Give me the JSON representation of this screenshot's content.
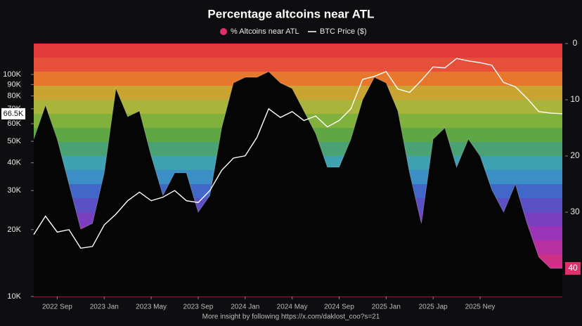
{
  "chart_data": {
    "type": "line",
    "title": "Percentage altcoins near ATL",
    "footer": "More insight by following https://x.com/daklost_coo?s=21",
    "x": [
      "2022-07",
      "2022-08",
      "2022-09",
      "2022-10",
      "2022-11",
      "2022-12",
      "2023-01",
      "2023-02",
      "2023-03",
      "2023-04",
      "2023-05",
      "2023-06",
      "2023-07",
      "2023-08",
      "2023-09",
      "2023-10",
      "2023-11",
      "2023-12",
      "2024-01",
      "2024-02",
      "2024-03",
      "2024-04",
      "2024-05",
      "2024-06",
      "2024-07",
      "2024-08",
      "2024-09",
      "2024-10",
      "2024-11",
      "2024-12",
      "2025-01",
      "2025-02",
      "2025-03",
      "2025-04",
      "2025-05",
      "2025-06",
      "2025-07",
      "2025-08",
      "2025-09",
      "2025-10",
      "2025-11",
      "2025-12",
      "2026-01",
      "2026-02",
      "2026-03",
      "2026-04"
    ],
    "xlim": [
      "2022-07",
      "2026-04"
    ],
    "xticks": [
      {
        "value": "2022-09",
        "label": "2022 Sep"
      },
      {
        "value": "2023-01",
        "label": "2023 Jan"
      },
      {
        "value": "2023-05",
        "label": "2023 May"
      },
      {
        "value": "2023-09",
        "label": "2023 Sep"
      },
      {
        "value": "2024-01",
        "label": "2024 Jan"
      },
      {
        "value": "2024-05",
        "label": "2024 May"
      },
      {
        "value": "2024-09",
        "label": "2024 Sep"
      },
      {
        "value": "2025-01",
        "label": "2025 Jan"
      },
      {
        "value": "2025-05",
        "label": "2025 Jap"
      },
      {
        "value": "2025-09",
        "label": "2025 Ney"
      }
    ],
    "series": [
      {
        "name": "% Altcoins near ATL",
        "color": "#e0306b",
        "axis": "y2",
        "values": [
          17,
          11,
          17,
          25,
          33,
          32,
          23,
          8,
          13,
          12,
          20,
          27,
          23,
          23,
          30,
          27,
          15,
          7,
          6,
          6,
          5,
          7,
          8,
          12,
          16,
          22,
          22,
          17,
          10,
          6,
          7,
          12,
          23,
          32,
          17,
          15,
          22,
          17,
          20,
          26,
          30,
          25,
          32,
          38,
          40,
          40
        ]
      },
      {
        "name": "BTC Price ($)",
        "color": "#ffffff",
        "axis": "y",
        "values": [
          19000,
          23000,
          19500,
          20000,
          16500,
          16800,
          21000,
          23500,
          27000,
          29500,
          27000,
          28000,
          30000,
          27000,
          26500,
          30000,
          37000,
          42000,
          43000,
          52000,
          70000,
          64000,
          68000,
          62000,
          65000,
          58000,
          62000,
          70000,
          95000,
          98000,
          103000,
          86000,
          83000,
          94000,
          108000,
          107000,
          118000,
          115000,
          113000,
          110000,
          92000,
          88000,
          78000,
          68000,
          67000,
          66500
        ],
        "value_labels": [
          null,
          null,
          null,
          null,
          null,
          null,
          null,
          null,
          null,
          null,
          null,
          null,
          null,
          null,
          null,
          null,
          null,
          null,
          null,
          null,
          null,
          null,
          null,
          null,
          null,
          null,
          null,
          null,
          null,
          null,
          null,
          null,
          null,
          null,
          null,
          null,
          null,
          null,
          null,
          null,
          null,
          null,
          null,
          null,
          null,
          "66.5K"
        ]
      }
    ],
    "log_y": true,
    "ylim": [
      10000,
      137700
    ],
    "yticks": [
      {
        "value": 10000,
        "label": "10K"
      },
      {
        "value": 20000,
        "label": "20K"
      },
      {
        "value": 30000,
        "label": "30K"
      },
      {
        "value": 40000,
        "label": "40K"
      },
      {
        "value": 50000,
        "label": "50K"
      },
      {
        "value": 60000,
        "label": "60K"
      },
      {
        "value": 70000,
        "label": "70K"
      },
      {
        "value": 80000,
        "label": "80K"
      },
      {
        "value": 90000,
        "label": "90K"
      },
      {
        "value": 100000,
        "label": "100K"
      }
    ],
    "y2lim": [
      0,
      45
    ],
    "y2_inverted": true,
    "y2ticks": [
      0,
      10,
      20,
      30,
      40
    ],
    "band_colors": [
      "#e23a3a",
      "#e6503a",
      "#e8772e",
      "#c9a430",
      "#a9b53a",
      "#7fb13c",
      "#5fa744",
      "#4aa174",
      "#3ea1b2",
      "#3c8fc4",
      "#4167c8",
      "#5a4fc4",
      "#7a3fc0",
      "#9b35b8",
      "#b8309f",
      "#cf2f86",
      "#de2f72",
      "#e3306a"
    ]
  }
}
